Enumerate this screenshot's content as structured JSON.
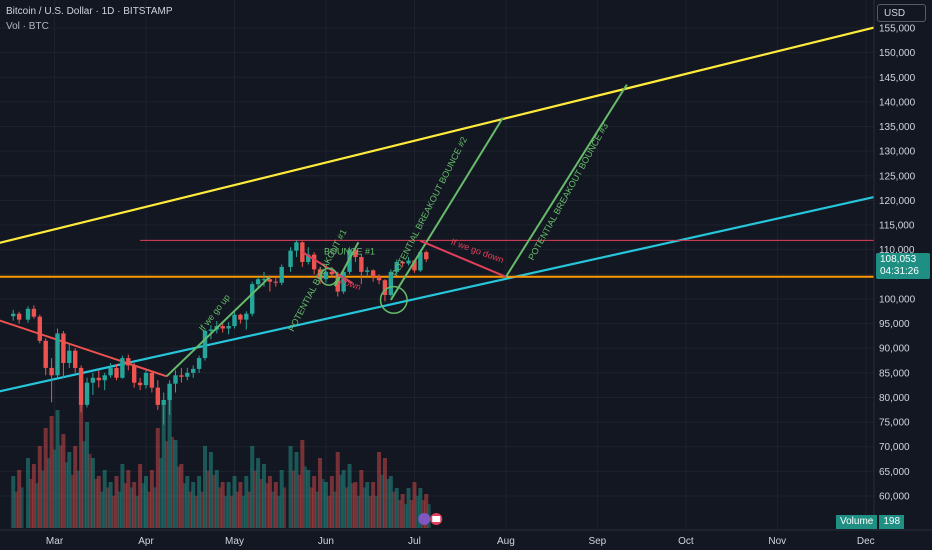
{
  "header": {
    "title": "Bitcoin / U.S. Dollar · 1D · BITSTAMP",
    "volume_label": "Vol · BTC",
    "currency": "USD"
  },
  "price_tag": {
    "price": "108,053",
    "countdown": "04:31:26"
  },
  "volume_tag": {
    "label": "Volume",
    "value": "198"
  },
  "colors": {
    "background": "#131722",
    "up": "#26a69a",
    "down": "#ef5350",
    "channel_top": "#ffeb3b",
    "channel_bottom": "#26c6da",
    "support_orange": "#ff9800",
    "resistance_red": "#e0405a",
    "projection_green": "#66bb6a"
  },
  "chart_data": {
    "type": "candlestick",
    "symbol": "BTCUSD",
    "exchange": "BITSTAMP",
    "interval": "1D",
    "y_ticks": [
      60000,
      65000,
      70000,
      75000,
      80000,
      85000,
      90000,
      95000,
      100000,
      105000,
      110000,
      115000,
      120000,
      125000,
      130000,
      135000,
      140000,
      145000,
      150000,
      155000
    ],
    "y_tick_labels": [
      "60,000",
      "65,000",
      "70,000",
      "75,000",
      "80,000",
      "85,000",
      "90,000",
      "95,000",
      "100,000",
      "105,000",
      "110,000",
      "115,000",
      "120,000",
      "125,000",
      "130,000",
      "135,000",
      "140,000",
      "145,000",
      "150,000",
      "155,000"
    ],
    "x_tick_labels": [
      "Mar",
      "Apr",
      "May",
      "Jun",
      "Jul",
      "Aug",
      "Sep",
      "Oct",
      "Nov",
      "Dec"
    ],
    "x_tick_dates": [
      "2025-03-01",
      "2025-04-01",
      "2025-05-01",
      "2025-06-01",
      "2025-07-01",
      "2025-08-01",
      "2025-09-01",
      "2025-10-01",
      "2025-11-01",
      "2025-12-01"
    ],
    "last_close": 108053,
    "candles": [
      [
        "2025-02-15",
        96500,
        97800,
        95600,
        97000
      ],
      [
        "2025-02-17",
        97000,
        97400,
        95000,
        95800
      ],
      [
        "2025-02-20",
        95800,
        98500,
        95200,
        98000
      ],
      [
        "2025-02-22",
        98000,
        98700,
        96000,
        96400
      ],
      [
        "2025-02-24",
        96400,
        96800,
        91000,
        91500
      ],
      [
        "2025-02-26",
        91500,
        92000,
        84500,
        86000
      ],
      [
        "2025-02-28",
        86000,
        88000,
        79000,
        84500
      ],
      [
        "2025-03-02",
        84500,
        94000,
        84000,
        93000
      ],
      [
        "2025-03-04",
        93000,
        93500,
        84000,
        87000
      ],
      [
        "2025-03-06",
        87000,
        91000,
        86000,
        89500
      ],
      [
        "2025-03-08",
        89500,
        90000,
        85000,
        86000
      ],
      [
        "2025-03-10",
        86000,
        86500,
        77000,
        78500
      ],
      [
        "2025-03-12",
        78500,
        84000,
        78000,
        83000
      ],
      [
        "2025-03-14",
        83000,
        85000,
        80500,
        84000
      ],
      [
        "2025-03-16",
        84000,
        85500,
        82000,
        83500
      ],
      [
        "2025-03-18",
        83500,
        85000,
        81500,
        84500
      ],
      [
        "2025-03-20",
        84500,
        87000,
        84000,
        86000
      ],
      [
        "2025-03-22",
        86000,
        86800,
        83500,
        84000
      ],
      [
        "2025-03-24",
        84000,
        88500,
        83800,
        88000
      ],
      [
        "2025-03-26",
        88000,
        88700,
        85500,
        86500
      ],
      [
        "2025-03-28",
        86500,
        87000,
        82000,
        83000
      ],
      [
        "2025-03-30",
        83000,
        84000,
        81500,
        82500
      ],
      [
        "2025-04-01",
        82500,
        85500,
        81800,
        85000
      ],
      [
        "2025-04-03",
        85000,
        85300,
        81000,
        82000
      ],
      [
        "2025-04-05",
        82000,
        83500,
        77500,
        78500
      ],
      [
        "2025-04-07",
        78500,
        81000,
        74500,
        79500
      ],
      [
        "2025-04-09",
        79500,
        83500,
        76500,
        82800
      ],
      [
        "2025-04-11",
        82800,
        85500,
        81000,
        84500
      ],
      [
        "2025-04-13",
        84500,
        86000,
        83000,
        84200
      ],
      [
        "2025-04-15",
        84200,
        86000,
        83500,
        85000
      ],
      [
        "2025-04-17",
        85000,
        86500,
        84000,
        85800
      ],
      [
        "2025-04-19",
        85800,
        88500,
        85000,
        88000
      ],
      [
        "2025-04-21",
        88000,
        93800,
        87500,
        93500
      ],
      [
        "2025-04-23",
        93500,
        94700,
        91800,
        93800
      ],
      [
        "2025-04-25",
        93800,
        95500,
        93000,
        94500
      ],
      [
        "2025-04-27",
        94500,
        95000,
        93200,
        94000
      ],
      [
        "2025-04-29",
        94000,
        95300,
        92800,
        94500
      ],
      [
        "2025-05-01",
        94500,
        97500,
        94000,
        96800
      ],
      [
        "2025-05-03",
        96800,
        97000,
        95000,
        95800
      ],
      [
        "2025-05-05",
        95800,
        97500,
        93800,
        97000
      ],
      [
        "2025-05-07",
        97000,
        103500,
        96500,
        103000
      ],
      [
        "2025-05-09",
        103000,
        104500,
        102000,
        104000
      ],
      [
        "2025-05-11",
        104000,
        105500,
        102500,
        104000
      ],
      [
        "2025-05-13",
        104000,
        104800,
        101500,
        103500
      ],
      [
        "2025-05-15",
        103500,
        104500,
        102500,
        103300
      ],
      [
        "2025-05-17",
        103300,
        107000,
        102800,
        106500
      ],
      [
        "2025-05-20",
        106500,
        110500,
        105500,
        109800
      ],
      [
        "2025-05-22",
        109800,
        111900,
        108500,
        111500
      ],
      [
        "2025-05-24",
        111500,
        111700,
        106500,
        107500
      ],
      [
        "2025-05-26",
        107500,
        110500,
        107000,
        109000
      ],
      [
        "2025-05-28",
        109000,
        109500,
        105000,
        106000
      ],
      [
        "2025-05-30",
        106000,
        106500,
        103000,
        104000
      ],
      [
        "2025-06-01",
        104000,
        105700,
        103300,
        105500
      ],
      [
        "2025-06-03",
        105500,
        106500,
        104500,
        105000
      ],
      [
        "2025-06-05",
        105000,
        105500,
        100500,
        101500
      ],
      [
        "2025-06-07",
        101500,
        106000,
        101000,
        105500
      ],
      [
        "2025-06-09",
        105500,
        110500,
        105000,
        110000
      ],
      [
        "2025-06-11",
        110000,
        110500,
        107500,
        108500
      ],
      [
        "2025-06-13",
        108500,
        109000,
        103000,
        105500
      ],
      [
        "2025-06-15",
        105500,
        106500,
        104500,
        105800
      ],
      [
        "2025-06-17",
        105800,
        106000,
        103500,
        104500
      ],
      [
        "2025-06-19",
        104500,
        105000,
        103000,
        103800
      ],
      [
        "2025-06-21",
        103800,
        104000,
        99500,
        100800
      ],
      [
        "2025-06-23",
        100800,
        106000,
        100500,
        105500
      ],
      [
        "2025-06-25",
        105500,
        108000,
        105000,
        107500
      ],
      [
        "2025-06-27",
        107500,
        107800,
        106500,
        107200
      ],
      [
        "2025-06-29",
        107200,
        108500,
        106800,
        107800
      ],
      [
        "2025-07-01",
        107800,
        108000,
        105300,
        105800
      ],
      [
        "2025-07-03",
        105800,
        110000,
        105500,
        109500
      ],
      [
        "2025-07-05",
        109500,
        109800,
        107500,
        108053
      ]
    ],
    "volume_profile": [
      0.35,
      0.4,
      0.5,
      0.45,
      0.6,
      0.75,
      0.85,
      0.9,
      0.7,
      0.55,
      0.6,
      0.95,
      0.8,
      0.5,
      0.35,
      0.4,
      0.3,
      0.35,
      0.45,
      0.4,
      0.3,
      0.45,
      0.35,
      0.4,
      0.75,
      0.95,
      1.0,
      0.65,
      0.45,
      0.35,
      0.3,
      0.35,
      0.6,
      0.55,
      0.4,
      0.3,
      0.3,
      0.35,
      0.3,
      0.35,
      0.6,
      0.5,
      0.45,
      0.35,
      0.3,
      0.4,
      0.6,
      0.55,
      0.65,
      0.4,
      0.35,
      0.5,
      0.3,
      0.35,
      0.55,
      0.4,
      0.45,
      0.3,
      0.4,
      0.3,
      0.3,
      0.55,
      0.5,
      0.35,
      0.25,
      0.2,
      0.25,
      0.3,
      0.25,
      0.2
    ],
    "drawings": [
      {
        "name": "channel-top-line",
        "color": "#ffeb3b",
        "points": [
          [
            "2025-02-01",
            110000
          ],
          [
            "2025-12-10",
            156000
          ]
        ]
      },
      {
        "name": "channel-bottom-line",
        "color": "#26c6da",
        "points": [
          [
            "2025-02-01",
            80000
          ],
          [
            "2025-12-10",
            121500
          ]
        ]
      },
      {
        "name": "support-line",
        "color": "#ff9800",
        "points": [
          [
            "2025-02-01",
            104500
          ],
          [
            "2025-12-10",
            104500
          ]
        ]
      },
      {
        "name": "resistance-line",
        "color": "#e0405a",
        "points": [
          [
            "2025-03-30",
            111900
          ],
          [
            "2025-12-10",
            111900
          ]
        ]
      },
      {
        "name": "downtrend-line",
        "color": "#ef5350",
        "points": [
          [
            "2025-02-01",
            97500
          ],
          [
            "2025-04-08",
            84300
          ]
        ]
      },
      {
        "name": "breakout-up-line",
        "color": "#66bb6a",
        "points": [
          [
            "2025-04-08",
            84300
          ],
          [
            "2025-05-13",
            104500
          ]
        ]
      },
      {
        "name": "projection-bounce-1",
        "color": "#66bb6a",
        "points": [
          [
            "2025-06-04",
            102600
          ],
          [
            "2025-06-12",
            111500
          ]
        ]
      },
      {
        "name": "projection-bounce-2",
        "color": "#66bb6a",
        "points": [
          [
            "2025-06-23",
            99800
          ],
          [
            "2025-07-31",
            136800
          ]
        ]
      },
      {
        "name": "projection-bounce-3",
        "color": "#66bb6a",
        "points": [
          [
            "2025-08-01",
            104500
          ],
          [
            "2025-09-11",
            143500
          ]
        ]
      },
      {
        "name": "down-move-1",
        "color": "#e0405a",
        "points": [
          [
            "2025-05-24",
            109500
          ],
          [
            "2025-06-10",
            103200
          ]
        ]
      },
      {
        "name": "down-move-2",
        "color": "#e0405a",
        "points": [
          [
            "2025-07-03",
            111800
          ],
          [
            "2025-08-01",
            104500
          ]
        ]
      }
    ],
    "annotations": [
      {
        "text": "If we go up",
        "color": "#66bb6a",
        "at": [
          "2025-04-25",
          96800
        ],
        "angle": -52
      },
      {
        "text": "POTENTIAL BREAKOUT #1",
        "color": "#66bb6a",
        "at": [
          "2025-05-30",
          103500
        ],
        "angle": -62
      },
      {
        "text": "BOUNCE #1",
        "color": "#66bb6a",
        "at": [
          "2025-06-09",
          109000
        ],
        "angle": 0
      },
      {
        "text": "down",
        "color": "#e0405a",
        "at": [
          "2025-06-09",
          102500
        ],
        "angle": 20
      },
      {
        "text": "POTENTIAL BREAKOUT BOUNCE #2",
        "color": "#66bb6a",
        "at": [
          "2025-07-07",
          118500
        ],
        "angle": -63
      },
      {
        "text": "If we go down",
        "color": "#e0405a",
        "at": [
          "2025-07-22",
          109200
        ],
        "angle": 20
      },
      {
        "text": "POTENTIAL BREAKOUT BOUNCE #3",
        "color": "#66bb6a",
        "at": [
          "2025-08-23",
          121500
        ],
        "angle": -61
      }
    ],
    "circles": [
      {
        "name": "bounce-circle-1",
        "color": "#66bb6a",
        "at": [
          "2025-06-02",
          104500
        ],
        "value_radius": 1700
      },
      {
        "name": "bounce-circle-2",
        "color": "#66bb6a",
        "at": [
          "2025-06-24",
          99800
        ],
        "value_radius": 2700
      }
    ]
  }
}
